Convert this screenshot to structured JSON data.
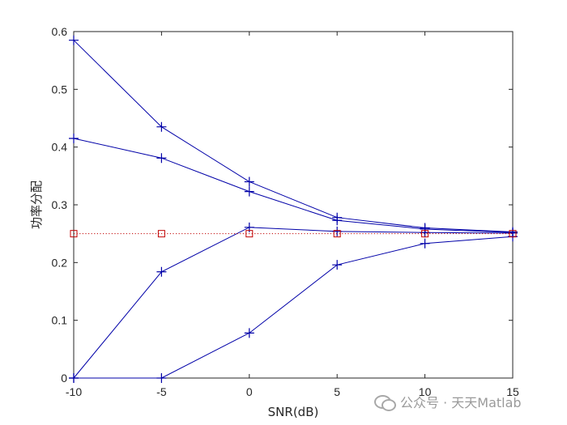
{
  "chart_data": {
    "type": "line",
    "title": "",
    "xlabel": "SNR(dB)",
    "ylabel": "功率分配",
    "x": [
      -10,
      -5,
      0,
      5,
      10,
      15
    ],
    "xlim": [
      -10,
      15
    ],
    "ylim": [
      0,
      0.6
    ],
    "xticks": [
      "-10",
      "-5",
      "0",
      "5",
      "10",
      "15"
    ],
    "yticks": [
      "0",
      "0.1",
      "0.2",
      "0.3",
      "0.4",
      "0.5",
      "0.6"
    ],
    "grid": false,
    "series": [
      {
        "values": [
          0.585,
          0.435,
          0.34,
          0.278,
          0.26,
          0.253
        ],
        "color": "#0000a8",
        "marker": "plus",
        "line": "solid"
      },
      {
        "values": [
          0.415,
          0.381,
          0.323,
          0.273,
          0.258,
          0.252
        ],
        "color": "#0000a8",
        "marker": "plus",
        "line": "solid"
      },
      {
        "values": [
          0.0,
          0.184,
          0.261,
          0.254,
          0.252,
          0.251
        ],
        "color": "#0000a8",
        "marker": "plus",
        "line": "solid"
      },
      {
        "values": [
          0.0,
          0.0,
          0.078,
          0.196,
          0.233,
          0.245
        ],
        "color": "#0000a8",
        "marker": "plus",
        "line": "solid"
      },
      {
        "values": [
          0.25,
          0.25,
          0.25,
          0.25,
          0.25,
          0.25
        ],
        "color": "#c00000",
        "marker": "square",
        "line": "dotted"
      }
    ]
  },
  "watermark": {
    "text": "公众号 · 天天Matlab",
    "icon": "wechat-icon"
  }
}
